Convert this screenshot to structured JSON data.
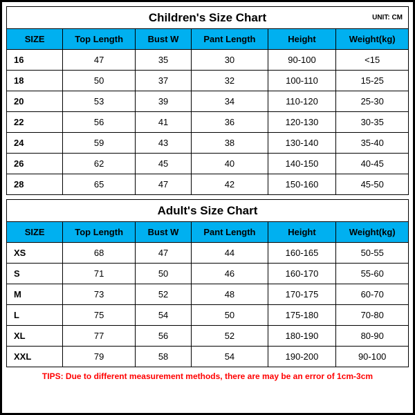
{
  "unit_label": "UNIT: CM",
  "tips": "TIPS: Due to different measurement methods, there are may be an error of 1cm-3cm",
  "columns": [
    "SIZE",
    "Top Length",
    "Bust W",
    "Pant Length",
    "Height",
    "Weight(kg)"
  ],
  "col_classes": [
    "col-size",
    "col-top",
    "col-bust",
    "col-pant",
    "col-height",
    "col-weight"
  ],
  "header_bg": "#00b0f0",
  "border_color": "#000000",
  "tips_color": "#ff0000",
  "children": {
    "title": "Children's Size Chart",
    "rows": [
      [
        "16",
        "47",
        "35",
        "30",
        "90-100",
        "<15"
      ],
      [
        "18",
        "50",
        "37",
        "32",
        "100-110",
        "15-25"
      ],
      [
        "20",
        "53",
        "39",
        "34",
        "110-120",
        "25-30"
      ],
      [
        "22",
        "56",
        "41",
        "36",
        "120-130",
        "30-35"
      ],
      [
        "24",
        "59",
        "43",
        "38",
        "130-140",
        "35-40"
      ],
      [
        "26",
        "62",
        "45",
        "40",
        "140-150",
        "40-45"
      ],
      [
        "28",
        "65",
        "47",
        "42",
        "150-160",
        "45-50"
      ]
    ]
  },
  "adult": {
    "title": "Adult's Size Chart",
    "rows": [
      [
        "XS",
        "68",
        "47",
        "44",
        "160-165",
        "50-55"
      ],
      [
        "S",
        "71",
        "50",
        "46",
        "160-170",
        "55-60"
      ],
      [
        "M",
        "73",
        "52",
        "48",
        "170-175",
        "60-70"
      ],
      [
        "L",
        "75",
        "54",
        "50",
        "175-180",
        "70-80"
      ],
      [
        "XL",
        "77",
        "56",
        "52",
        "180-190",
        "80-90"
      ],
      [
        "XXL",
        "79",
        "58",
        "54",
        "190-200",
        "90-100"
      ]
    ]
  }
}
